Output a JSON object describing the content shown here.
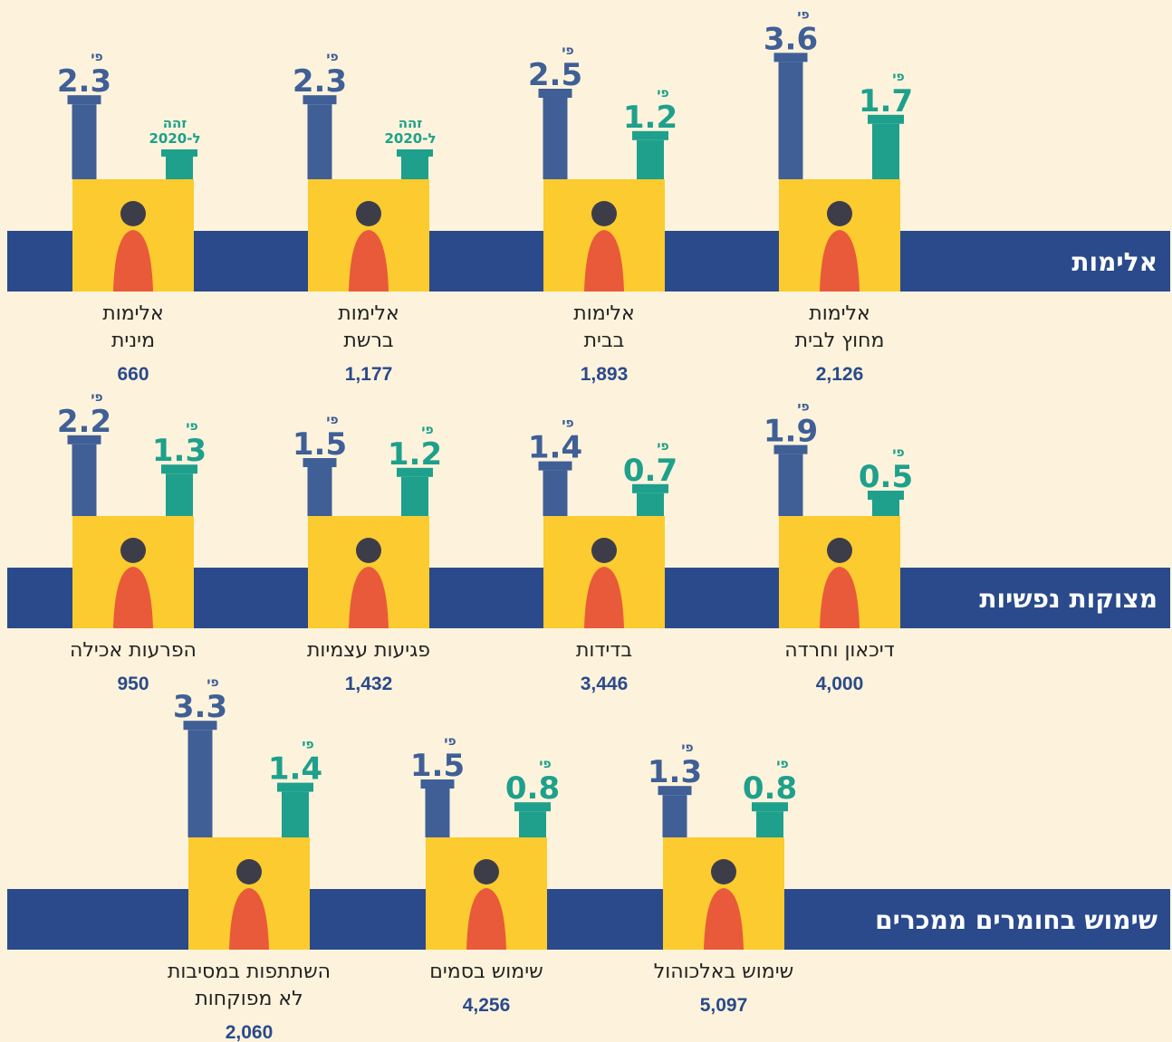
{
  "sections": [
    {
      "title": "אלימות",
      "items": [
        {
          "label": [
            "אלימות",
            "מחוץ לבית"
          ],
          "count": "2,126",
          "blue": {
            "prefix": "פי",
            "value": 3.6
          },
          "teal": {
            "prefix": "פי",
            "value": 1.7
          }
        },
        {
          "label": [
            "אלימות",
            "בבית"
          ],
          "count": "1,893",
          "blue": {
            "prefix": "פי",
            "value": 2.5
          },
          "teal": {
            "prefix": "פי",
            "value": 1.2
          }
        },
        {
          "label": [
            "אלימות",
            "ברשת"
          ],
          "count": "1,177",
          "blue": {
            "prefix": "פי",
            "value": 2.3
          },
          "teal": {
            "note": [
              "זהה",
              "ל-2020"
            ]
          }
        },
        {
          "label": [
            "אלימות",
            "מינית"
          ],
          "count": "660",
          "blue": {
            "prefix": "פי",
            "value": 2.3
          },
          "teal": {
            "note": [
              "זהה",
              "ל-2020"
            ]
          }
        }
      ]
    },
    {
      "title": "מצוקות נפשיות",
      "items": [
        {
          "label": [
            "דיכאון וחרדה"
          ],
          "count": "4,000",
          "blue": {
            "prefix": "פי",
            "value": 1.9
          },
          "teal": {
            "prefix": "פי",
            "value": 0.5
          }
        },
        {
          "label": [
            "בדידות"
          ],
          "count": "3,446",
          "blue": {
            "prefix": "פי",
            "value": 1.4
          },
          "teal": {
            "prefix": "פי",
            "value": 0.7
          }
        },
        {
          "label": [
            "פגיעות עצמיות"
          ],
          "count": "1,432",
          "blue": {
            "prefix": "פי",
            "value": 1.5
          },
          "teal": {
            "prefix": "פי",
            "value": 1.2
          }
        },
        {
          "label": [
            "הפרעות אכילה"
          ],
          "count": "950",
          "blue": {
            "prefix": "פי",
            "value": 2.2
          },
          "teal": {
            "prefix": "פי",
            "value": 1.3
          }
        }
      ]
    },
    {
      "title": "שימוש בחומרים ממכרים",
      "items": [
        {
          "label": [
            "שימוש באלכוהול"
          ],
          "count": "5,097",
          "blue": {
            "prefix": "פי",
            "value": 1.3
          },
          "teal": {
            "prefix": "פי",
            "value": 0.8
          }
        },
        {
          "label": [
            "שימוש בסמים"
          ],
          "count": "4,256",
          "blue": {
            "prefix": "פי",
            "value": 1.5
          },
          "teal": {
            "prefix": "פי",
            "value": 0.8
          }
        },
        {
          "label": [
            "השתתפות במסיבות",
            "לא מפוקחות"
          ],
          "count": "2,060",
          "blue": {
            "prefix": "פי",
            "value": 3.3
          },
          "teal": {
            "prefix": "פי",
            "value": 1.4
          }
        }
      ]
    }
  ]
}
